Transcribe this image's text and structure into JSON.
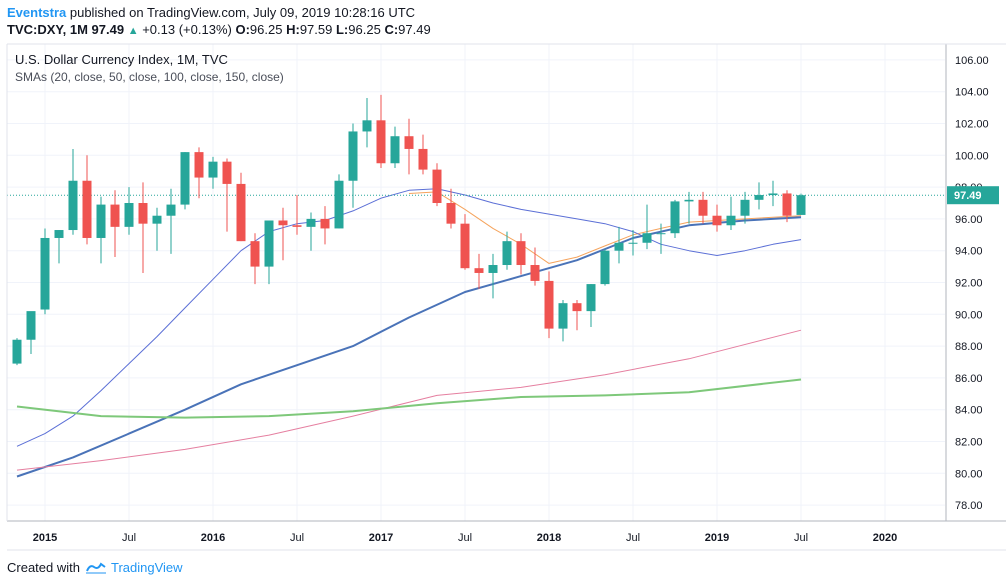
{
  "header": {
    "publisher": "Eventstra",
    "published_text": " published on TradingView.com, July 09, 2019 10:28:16 UTC",
    "symbol": "TVC:DXY, 1M",
    "last": "97.49",
    "change": "+0.13 (+0.13%)",
    "o_label": "O:",
    "o_value": "96.25",
    "h_label": "H:",
    "h_value": "97.59",
    "l_label": "L:",
    "l_value": "96.25",
    "c_label": "C:",
    "c_value": "97.49"
  },
  "footer": {
    "created_with": "Created with",
    "brand": "TradingView"
  },
  "colors": {
    "up": "#26a69a",
    "down": "#ef5350",
    "sma20": "#f5a35c",
    "sma50": "#5b6fd6",
    "sma100": "#4a73b8",
    "sma150": "#e57fa0",
    "sma200": "#7ec87a",
    "last_line": "#26a69a",
    "grid": "#f0f3fa"
  },
  "chart_data": {
    "type": "candlestick",
    "title": "U.S. Dollar Currency Index, 1M, TVC",
    "subtitle": "SMAs (20, close, 50, close, 100, close, 150, close)",
    "ylim": [
      77,
      107
    ],
    "y_ticks": [
      "106.00",
      "104.00",
      "102.00",
      "100.00",
      "98.00",
      "96.00",
      "94.00",
      "92.00",
      "90.00",
      "88.00",
      "86.00",
      "84.00",
      "82.00",
      "80.00",
      "78.00"
    ],
    "x_ticks": [
      "2015",
      "Jul",
      "2016",
      "Jul",
      "2017",
      "Jul",
      "2018",
      "Jul",
      "2019",
      "Jul",
      "2020"
    ],
    "last_price_label": "97.49",
    "last_price": 97.49,
    "candles": [
      {
        "t": "2014-11",
        "o": 86.9,
        "h": 88.5,
        "l": 86.8,
        "c": 88.4
      },
      {
        "t": "2014-12",
        "o": 88.4,
        "h": 90.0,
        "l": 87.5,
        "c": 90.2
      },
      {
        "t": "2015-01",
        "o": 90.3,
        "h": 95.4,
        "l": 90.0,
        "c": 94.8
      },
      {
        "t": "2015-02",
        "o": 94.8,
        "h": 95.3,
        "l": 93.2,
        "c": 95.3
      },
      {
        "t": "2015-03",
        "o": 95.3,
        "h": 100.4,
        "l": 95.0,
        "c": 98.4
      },
      {
        "t": "2015-04",
        "o": 98.4,
        "h": 100.0,
        "l": 94.4,
        "c": 94.8
      },
      {
        "t": "2015-05",
        "o": 94.8,
        "h": 97.4,
        "l": 93.2,
        "c": 96.9
      },
      {
        "t": "2015-06",
        "o": 96.9,
        "h": 97.8,
        "l": 93.6,
        "c": 95.5
      },
      {
        "t": "2015-07",
        "o": 95.5,
        "h": 98.0,
        "l": 95.0,
        "c": 97.0
      },
      {
        "t": "2015-08",
        "o": 97.0,
        "h": 98.3,
        "l": 92.6,
        "c": 95.7
      },
      {
        "t": "2015-09",
        "o": 95.7,
        "h": 96.7,
        "l": 94.0,
        "c": 96.2
      },
      {
        "t": "2015-10",
        "o": 96.2,
        "h": 97.9,
        "l": 93.8,
        "c": 96.9
      },
      {
        "t": "2015-11",
        "o": 96.9,
        "h": 100.2,
        "l": 96.6,
        "c": 100.2
      },
      {
        "t": "2015-12",
        "o": 100.2,
        "h": 100.5,
        "l": 97.3,
        "c": 98.6
      },
      {
        "t": "2016-01",
        "o": 98.6,
        "h": 99.9,
        "l": 97.9,
        "c": 99.6
      },
      {
        "t": "2016-02",
        "o": 99.6,
        "h": 99.8,
        "l": 95.2,
        "c": 98.2
      },
      {
        "t": "2016-03",
        "o": 98.2,
        "h": 98.9,
        "l": 94.6,
        "c": 94.6
      },
      {
        "t": "2016-04",
        "o": 94.6,
        "h": 95.1,
        "l": 91.9,
        "c": 93.0
      },
      {
        "t": "2016-05",
        "o": 93.0,
        "h": 95.9,
        "l": 91.9,
        "c": 95.9
      },
      {
        "t": "2016-06",
        "o": 95.9,
        "h": 96.7,
        "l": 93.4,
        "c": 95.6
      },
      {
        "t": "2016-07",
        "o": 95.6,
        "h": 97.5,
        "l": 95.0,
        "c": 95.5
      },
      {
        "t": "2016-08",
        "o": 95.5,
        "h": 96.4,
        "l": 94.0,
        "c": 96.0
      },
      {
        "t": "2016-09",
        "o": 96.0,
        "h": 96.8,
        "l": 94.4,
        "c": 95.4
      },
      {
        "t": "2016-10",
        "o": 95.4,
        "h": 98.8,
        "l": 95.4,
        "c": 98.4
      },
      {
        "t": "2016-11",
        "o": 98.4,
        "h": 102.0,
        "l": 96.7,
        "c": 101.5
      },
      {
        "t": "2016-12",
        "o": 101.5,
        "h": 103.6,
        "l": 100.5,
        "c": 102.2
      },
      {
        "t": "2017-01",
        "o": 102.2,
        "h": 103.8,
        "l": 99.2,
        "c": 99.5
      },
      {
        "t": "2017-02",
        "o": 99.5,
        "h": 101.8,
        "l": 99.2,
        "c": 101.2
      },
      {
        "t": "2017-03",
        "o": 101.2,
        "h": 102.3,
        "l": 98.8,
        "c": 100.4
      },
      {
        "t": "2017-04",
        "o": 100.4,
        "h": 101.3,
        "l": 98.8,
        "c": 99.1
      },
      {
        "t": "2017-05",
        "o": 99.1,
        "h": 99.5,
        "l": 96.8,
        "c": 97.0
      },
      {
        "t": "2017-06",
        "o": 97.0,
        "h": 97.9,
        "l": 95.4,
        "c": 95.7
      },
      {
        "t": "2017-07",
        "o": 95.7,
        "h": 96.3,
        "l": 92.8,
        "c": 92.9
      },
      {
        "t": "2017-08",
        "o": 92.9,
        "h": 93.8,
        "l": 91.6,
        "c": 92.6
      },
      {
        "t": "2017-09",
        "o": 92.6,
        "h": 93.8,
        "l": 91.0,
        "c": 93.1
      },
      {
        "t": "2017-10",
        "o": 93.1,
        "h": 95.2,
        "l": 92.8,
        "c": 94.6
      },
      {
        "t": "2017-11",
        "o": 94.6,
        "h": 95.1,
        "l": 92.5,
        "c": 93.1
      },
      {
        "t": "2017-12",
        "o": 93.1,
        "h": 94.2,
        "l": 91.8,
        "c": 92.1
      },
      {
        "t": "2018-01",
        "o": 92.1,
        "h": 92.7,
        "l": 88.5,
        "c": 89.1
      },
      {
        "t": "2018-02",
        "o": 89.1,
        "h": 90.9,
        "l": 88.3,
        "c": 90.7
      },
      {
        "t": "2018-03",
        "o": 90.7,
        "h": 90.9,
        "l": 89.0,
        "c": 90.2
      },
      {
        "t": "2018-04",
        "o": 90.2,
        "h": 91.9,
        "l": 89.2,
        "c": 91.9
      },
      {
        "t": "2018-05",
        "o": 91.9,
        "h": 94.1,
        "l": 91.8,
        "c": 94.0
      },
      {
        "t": "2018-06",
        "o": 94.0,
        "h": 95.5,
        "l": 93.2,
        "c": 94.5
      },
      {
        "t": "2018-07",
        "o": 94.5,
        "h": 95.3,
        "l": 93.7,
        "c": 94.5
      },
      {
        "t": "2018-08",
        "o": 94.5,
        "h": 96.9,
        "l": 94.1,
        "c": 95.1
      },
      {
        "t": "2018-09",
        "o": 95.1,
        "h": 95.7,
        "l": 93.8,
        "c": 95.1
      },
      {
        "t": "2018-10",
        "o": 95.1,
        "h": 97.2,
        "l": 94.8,
        "c": 97.1
      },
      {
        "t": "2018-11",
        "o": 97.1,
        "h": 97.7,
        "l": 95.7,
        "c": 97.2
      },
      {
        "t": "2018-12",
        "o": 97.2,
        "h": 97.7,
        "l": 95.7,
        "c": 96.2
      },
      {
        "t": "2019-01",
        "o": 96.2,
        "h": 96.9,
        "l": 95.2,
        "c": 95.6
      },
      {
        "t": "2019-02",
        "o": 95.6,
        "h": 97.4,
        "l": 95.3,
        "c": 96.2
      },
      {
        "t": "2019-03",
        "o": 96.2,
        "h": 97.7,
        "l": 95.7,
        "c": 97.2
      },
      {
        "t": "2019-04",
        "o": 97.2,
        "h": 98.3,
        "l": 96.6,
        "c": 97.5
      },
      {
        "t": "2019-05",
        "o": 97.5,
        "h": 98.4,
        "l": 96.8,
        "c": 97.6
      },
      {
        "t": "2019-06",
        "o": 97.6,
        "h": 97.8,
        "l": 95.8,
        "c": 96.2
      },
      {
        "t": "2019-07",
        "o": 96.25,
        "h": 97.59,
        "l": 96.25,
        "c": 97.49
      }
    ],
    "series": [
      {
        "values_x": [
          "2017-03",
          "2017-05",
          "2017-07",
          "2017-09",
          "2017-11",
          "2018-01",
          "2018-03",
          "2018-05",
          "2018-07",
          "2018-09",
          "2018-11",
          "2019-01",
          "2019-03",
          "2019-05",
          "2019-07"
        ],
        "values": [
          97.6,
          97.7,
          96.6,
          95.4,
          94.4,
          93.2,
          93.6,
          94.3,
          95.0,
          95.4,
          95.8,
          95.9,
          96.0,
          96.1,
          96.2
        ]
      },
      {
        "values_x": [
          "2014-11",
          "2015-01",
          "2015-03",
          "2015-05",
          "2015-07",
          "2015-09",
          "2015-11",
          "2016-01",
          "2016-03",
          "2016-05",
          "2016-07",
          "2016-09",
          "2016-11",
          "2017-01",
          "2017-03",
          "2017-05",
          "2017-07",
          "2017-09",
          "2017-11",
          "2018-01",
          "2018-03",
          "2018-05",
          "2018-07",
          "2018-09",
          "2018-11",
          "2019-01",
          "2019-03",
          "2019-05",
          "2019-07"
        ],
        "values": [
          81.7,
          82.5,
          83.6,
          85.2,
          86.9,
          88.6,
          90.4,
          92.2,
          94.0,
          95.2,
          95.7,
          95.9,
          96.5,
          97.3,
          97.8,
          97.9,
          97.5,
          97.0,
          96.6,
          96.3,
          96.0,
          95.7,
          95.2,
          94.4,
          94.0,
          93.7,
          94.0,
          94.4,
          94.7
        ]
      },
      {
        "values_x": [
          "2014-11",
          "2015-03",
          "2015-07",
          "2015-11",
          "2016-03",
          "2016-07",
          "2016-11",
          "2017-03",
          "2017-07",
          "2017-11",
          "2018-03",
          "2018-07",
          "2018-11",
          "2019-03",
          "2019-07"
        ],
        "values": [
          79.8,
          81.0,
          82.5,
          84.0,
          85.6,
          86.8,
          88.0,
          89.8,
          91.4,
          92.4,
          93.4,
          94.8,
          95.6,
          95.9,
          96.1
        ]
      },
      {
        "values_x": [
          "2014-11",
          "2015-05",
          "2015-11",
          "2016-05",
          "2016-11",
          "2017-05",
          "2017-11",
          "2018-05",
          "2018-11",
          "2019-07"
        ],
        "values": [
          80.2,
          80.8,
          81.5,
          82.4,
          83.6,
          84.9,
          85.4,
          86.2,
          87.2,
          89.0
        ]
      },
      {
        "values_x": [
          "2014-11",
          "2015-05",
          "2015-11",
          "2016-05",
          "2016-11",
          "2017-05",
          "2017-11",
          "2018-05",
          "2018-11",
          "2019-07"
        ],
        "values": [
          84.2,
          83.6,
          83.5,
          83.6,
          83.9,
          84.4,
          84.8,
          84.9,
          85.1,
          85.9
        ]
      }
    ]
  }
}
